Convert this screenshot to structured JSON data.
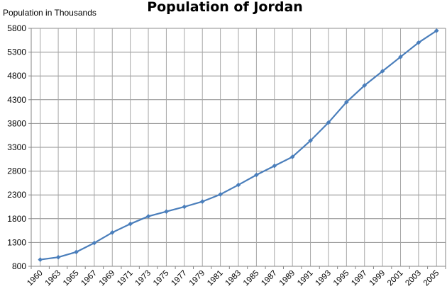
{
  "chart_data": {
    "type": "line",
    "title": "Population of Jordan",
    "ylabel": "Population in Thousands",
    "xlabel": "",
    "ylim": [
      800,
      5800
    ],
    "yticks": [
      800,
      1300,
      1800,
      2300,
      2800,
      3300,
      3800,
      4300,
      4800,
      5300,
      5800
    ],
    "grid": true,
    "categories": [
      "1960",
      "1963",
      "1965",
      "1967",
      "1969",
      "1971",
      "1973",
      "1975",
      "1977",
      "1979",
      "1981",
      "1983",
      "1985",
      "1987",
      "1989",
      "1991",
      "1993",
      "1995",
      "1997",
      "1999",
      "2001",
      "2003",
      "2005"
    ],
    "series": [
      {
        "color": "#4a7ebb",
        "values": [
          940,
          990,
          1100,
          1290,
          1510,
          1690,
          1850,
          1950,
          2050,
          2160,
          2310,
          2510,
          2720,
          2910,
          3100,
          3440,
          3820,
          4250,
          4600,
          4900,
          5200,
          5500,
          5750
        ]
      }
    ]
  }
}
